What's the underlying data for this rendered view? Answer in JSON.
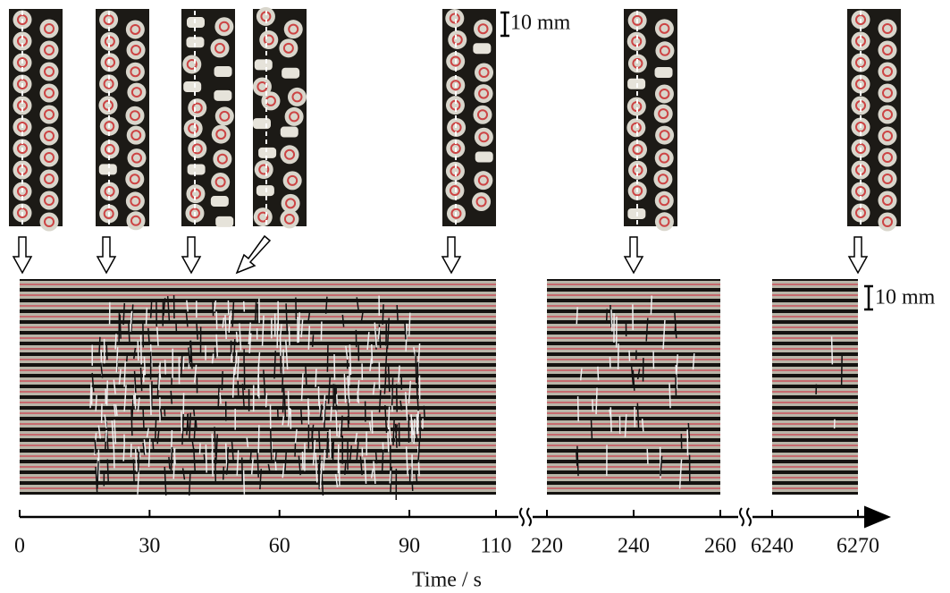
{
  "scale_bar_top": "10 mm",
  "scale_bar_right": "10 mm",
  "axis": {
    "label": "Time / s",
    "segments": [
      {
        "ticks": [
          0,
          30,
          60,
          90,
          110
        ]
      },
      {
        "ticks": [
          220,
          240,
          260
        ]
      },
      {
        "ticks": [
          6240,
          6270
        ]
      }
    ]
  }
}
